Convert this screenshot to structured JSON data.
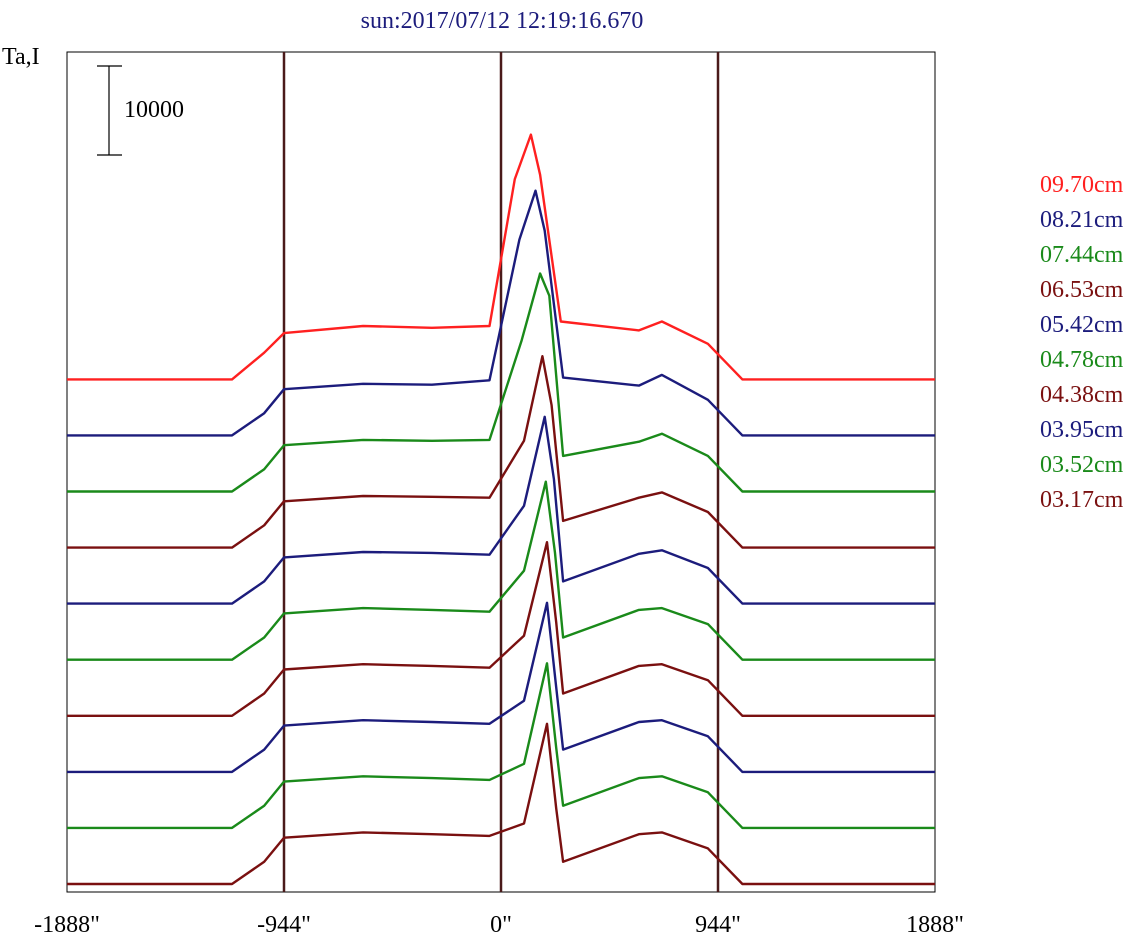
{
  "chart_data": {
    "type": "line",
    "title": "sun:2017/07/12 12:19:16.670",
    "ylabel": "Ta,I",
    "xlim": [
      -1888,
      1888
    ],
    "x_ticks": [
      {
        "value": -1888,
        "label": "-1888\""
      },
      {
        "value": -944,
        "label": "-944\""
      },
      {
        "value": 0,
        "label": "0\""
      },
      {
        "value": 944,
        "label": "944\""
      },
      {
        "value": 1888,
        "label": "1888\""
      }
    ],
    "vertical_lines": [
      -944,
      0,
      944
    ],
    "scale_bar": {
      "value": 10000,
      "label": "10000"
    },
    "offset_between_series": 6300,
    "series": [
      {
        "name": "09.70cm",
        "color": "#ff2020",
        "values": [
          [
            -1888,
            0
          ],
          [
            -1170,
            0
          ],
          [
            -1030,
            3000
          ],
          [
            -944,
            5200
          ],
          [
            -600,
            6000
          ],
          [
            -300,
            5800
          ],
          [
            -50,
            6000
          ],
          [
            60,
            22500
          ],
          [
            130,
            27500
          ],
          [
            170,
            23000
          ],
          [
            260,
            6500
          ],
          [
            600,
            5500
          ],
          [
            700,
            6500
          ],
          [
            900,
            4000
          ],
          [
            1050,
            0
          ],
          [
            1888,
            0
          ]
        ]
      },
      {
        "name": "08.21cm",
        "color": "#1c1c7c",
        "values": [
          [
            -1888,
            0
          ],
          [
            -1170,
            0
          ],
          [
            -1030,
            2500
          ],
          [
            -944,
            5200
          ],
          [
            -600,
            5800
          ],
          [
            -300,
            5700
          ],
          [
            -50,
            6200
          ],
          [
            80,
            22000
          ],
          [
            150,
            27500
          ],
          [
            190,
            23000
          ],
          [
            270,
            6500
          ],
          [
            600,
            5600
          ],
          [
            700,
            6800
          ],
          [
            900,
            4000
          ],
          [
            1050,
            0
          ],
          [
            1888,
            0
          ]
        ]
      },
      {
        "name": "07.44cm",
        "color": "#1a8a1a",
        "values": [
          [
            -1888,
            0
          ],
          [
            -1170,
            0
          ],
          [
            -1030,
            2500
          ],
          [
            -944,
            5200
          ],
          [
            -600,
            5800
          ],
          [
            -300,
            5700
          ],
          [
            -50,
            5800
          ],
          [
            90,
            17000
          ],
          [
            170,
            24500
          ],
          [
            210,
            22000
          ],
          [
            270,
            4000
          ],
          [
            600,
            5600
          ],
          [
            700,
            6500
          ],
          [
            900,
            4000
          ],
          [
            1050,
            0
          ],
          [
            1888,
            0
          ]
        ]
      },
      {
        "name": "06.53cm",
        "color": "#7a1010",
        "values": [
          [
            -1888,
            0
          ],
          [
            -1170,
            0
          ],
          [
            -1030,
            2500
          ],
          [
            -944,
            5200
          ],
          [
            -600,
            5800
          ],
          [
            -300,
            5700
          ],
          [
            -50,
            5600
          ],
          [
            100,
            12000
          ],
          [
            180,
            21500
          ],
          [
            220,
            16000
          ],
          [
            270,
            3000
          ],
          [
            600,
            5600
          ],
          [
            700,
            6200
          ],
          [
            900,
            4000
          ],
          [
            1050,
            0
          ],
          [
            1888,
            0
          ]
        ]
      },
      {
        "name": "05.42cm",
        "color": "#1c1c7c",
        "values": [
          [
            -1888,
            0
          ],
          [
            -1170,
            0
          ],
          [
            -1030,
            2500
          ],
          [
            -944,
            5200
          ],
          [
            -600,
            5800
          ],
          [
            -300,
            5700
          ],
          [
            -50,
            5500
          ],
          [
            100,
            11000
          ],
          [
            190,
            21000
          ],
          [
            230,
            14000
          ],
          [
            270,
            2500
          ],
          [
            600,
            5600
          ],
          [
            700,
            6000
          ],
          [
            900,
            4000
          ],
          [
            1050,
            0
          ],
          [
            1888,
            0
          ]
        ]
      },
      {
        "name": "04.78cm",
        "color": "#1a8a1a",
        "values": [
          [
            -1888,
            0
          ],
          [
            -1170,
            0
          ],
          [
            -1030,
            2500
          ],
          [
            -944,
            5200
          ],
          [
            -600,
            5800
          ],
          [
            -300,
            5600
          ],
          [
            -50,
            5400
          ],
          [
            100,
            10000
          ],
          [
            195,
            20000
          ],
          [
            235,
            12000
          ],
          [
            270,
            2500
          ],
          [
            600,
            5600
          ],
          [
            700,
            5800
          ],
          [
            900,
            4000
          ],
          [
            1050,
            0
          ],
          [
            1888,
            0
          ]
        ]
      },
      {
        "name": "04.38cm",
        "color": "#7a1010",
        "values": [
          [
            -1888,
            0
          ],
          [
            -1170,
            0
          ],
          [
            -1030,
            2500
          ],
          [
            -944,
            5200
          ],
          [
            -600,
            5800
          ],
          [
            -300,
            5600
          ],
          [
            -50,
            5400
          ],
          [
            100,
            9000
          ],
          [
            200,
            19500
          ],
          [
            240,
            10500
          ],
          [
            270,
            2500
          ],
          [
            600,
            5600
          ],
          [
            700,
            5800
          ],
          [
            900,
            4000
          ],
          [
            1050,
            0
          ],
          [
            1888,
            0
          ]
        ]
      },
      {
        "name": "03.95cm",
        "color": "#1c1c7c",
        "values": [
          [
            -1888,
            0
          ],
          [
            -1170,
            0
          ],
          [
            -1030,
            2500
          ],
          [
            -944,
            5200
          ],
          [
            -600,
            5800
          ],
          [
            -300,
            5600
          ],
          [
            -50,
            5400
          ],
          [
            100,
            8000
          ],
          [
            200,
            19000
          ],
          [
            240,
            9500
          ],
          [
            270,
            2500
          ],
          [
            600,
            5600
          ],
          [
            700,
            5800
          ],
          [
            900,
            4000
          ],
          [
            1050,
            0
          ],
          [
            1888,
            0
          ]
        ]
      },
      {
        "name": "03.52cm",
        "color": "#1a8a1a",
        "values": [
          [
            -1888,
            0
          ],
          [
            -1170,
            0
          ],
          [
            -1030,
            2500
          ],
          [
            -944,
            5200
          ],
          [
            -600,
            5800
          ],
          [
            -300,
            5600
          ],
          [
            -50,
            5400
          ],
          [
            100,
            7200
          ],
          [
            200,
            18500
          ],
          [
            240,
            9000
          ],
          [
            270,
            2500
          ],
          [
            600,
            5600
          ],
          [
            700,
            5800
          ],
          [
            900,
            4000
          ],
          [
            1050,
            0
          ],
          [
            1888,
            0
          ]
        ]
      },
      {
        "name": "03.17cm",
        "color": "#7a1010",
        "values": [
          [
            -1888,
            0
          ],
          [
            -1170,
            0
          ],
          [
            -1030,
            2500
          ],
          [
            -944,
            5200
          ],
          [
            -600,
            5800
          ],
          [
            -300,
            5600
          ],
          [
            -50,
            5400
          ],
          [
            100,
            6800
          ],
          [
            200,
            18000
          ],
          [
            240,
            8500
          ],
          [
            270,
            2500
          ],
          [
            600,
            5600
          ],
          [
            700,
            5800
          ],
          [
            900,
            4000
          ],
          [
            1050,
            0
          ],
          [
            1888,
            0
          ]
        ]
      }
    ]
  }
}
